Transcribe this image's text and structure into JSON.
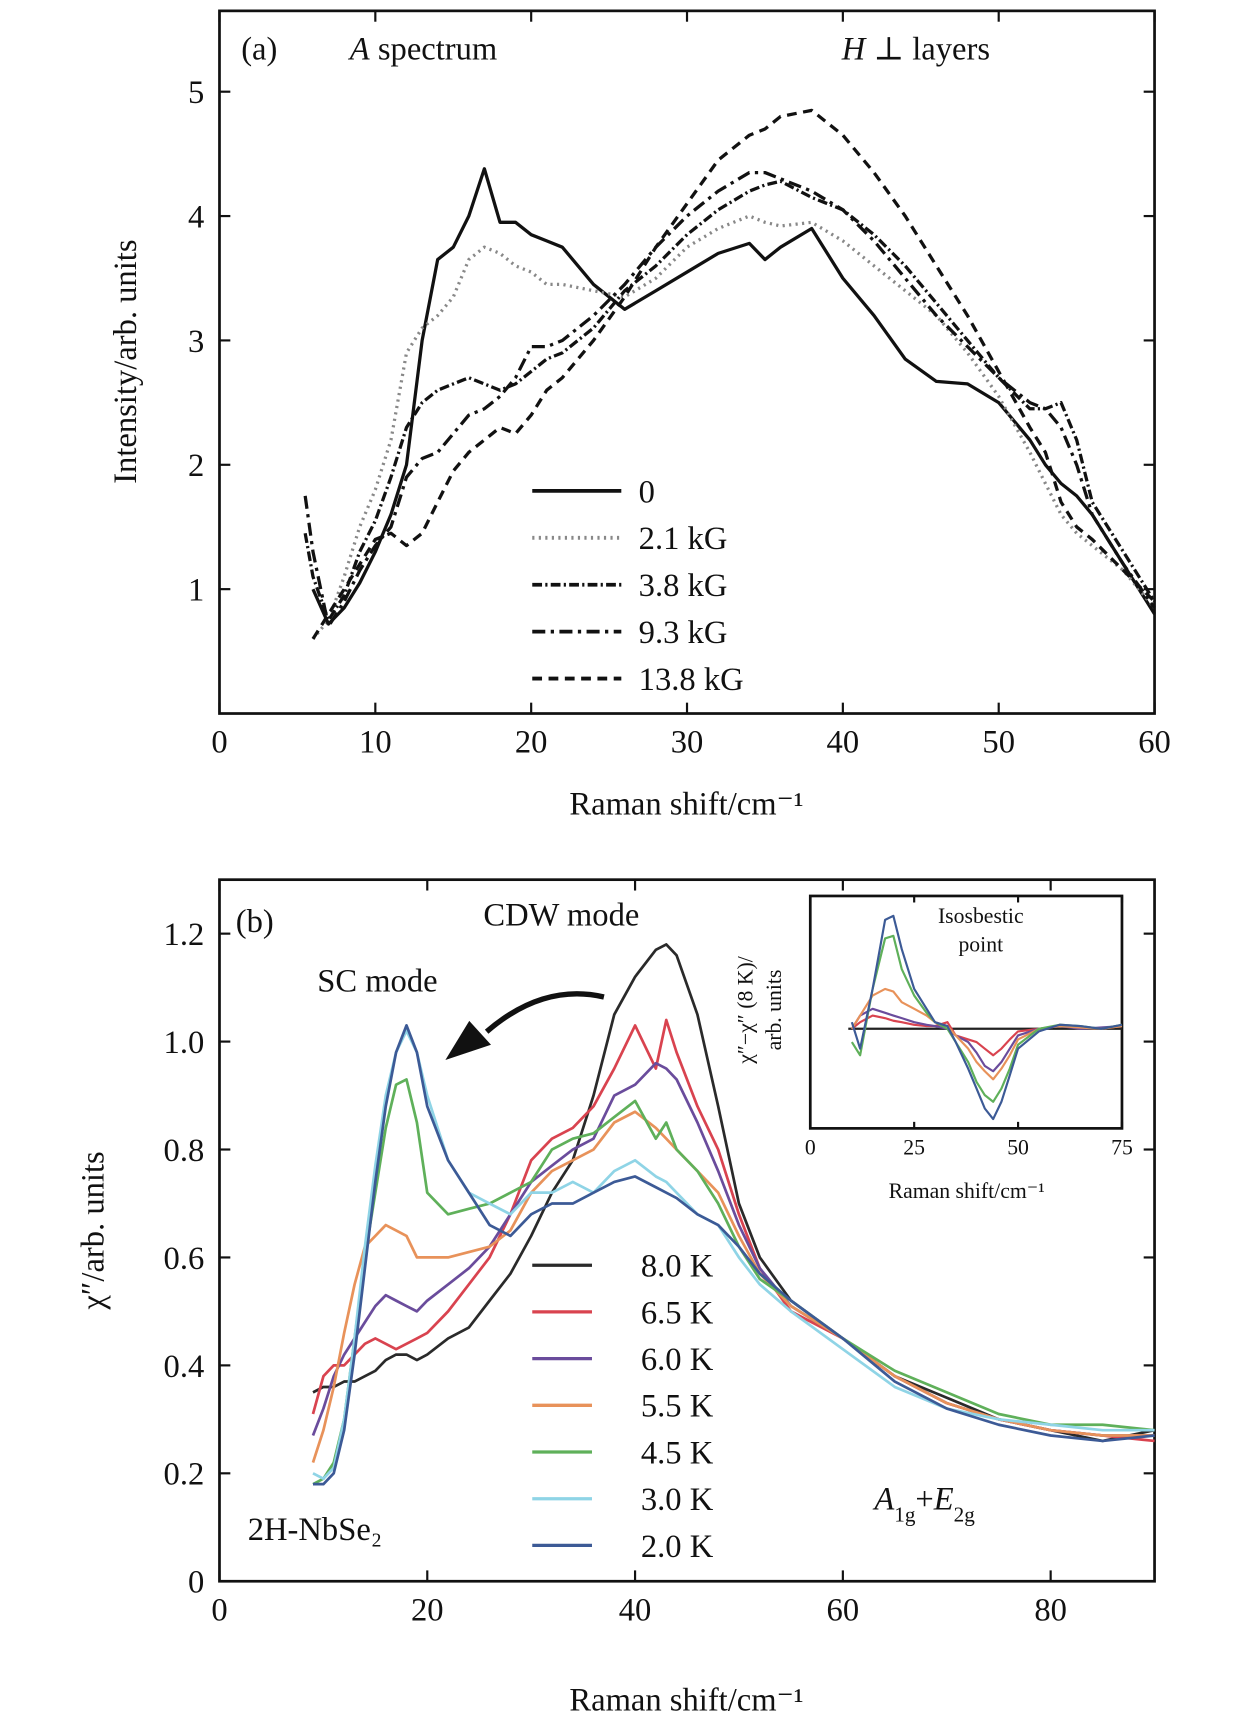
{
  "chart_data": [
    {
      "type": "line",
      "annotations": [
        "(a)",
        [
          "A",
          " spectrum"
        ],
        [
          "H",
          " ⊥ layers"
        ]
      ],
      "xlabel": "Raman shift/cm⁻¹",
      "ylabel": "Intensity/arb. units",
      "xlim": [
        0,
        60
      ],
      "ylim": [
        0,
        5.65
      ],
      "xticks": [
        0,
        10,
        20,
        30,
        40,
        50,
        60
      ],
      "yticks": [
        1,
        2,
        3,
        4,
        5
      ],
      "legend": "lower center",
      "x": [
        5.5,
        6,
        7,
        8,
        9,
        10,
        11,
        12,
        13,
        14,
        15,
        16,
        17,
        18,
        19,
        20,
        21,
        22,
        24,
        26,
        28,
        30,
        32,
        34,
        35,
        36,
        38,
        40,
        42,
        44,
        46,
        48,
        50,
        52,
        53,
        54,
        55,
        56,
        58,
        60
      ],
      "series": [
        {
          "name": "0",
          "color": "#111111",
          "dash": "solid",
          "values": [
            null,
            1.0,
            0.72,
            0.85,
            1.05,
            1.3,
            1.6,
            2.0,
            3.0,
            3.65,
            3.75,
            4.0,
            4.38,
            3.95,
            3.95,
            3.85,
            3.8,
            3.75,
            3.45,
            3.25,
            3.4,
            3.55,
            3.7,
            3.78,
            3.65,
            3.75,
            3.9,
            3.5,
            3.2,
            2.85,
            2.67,
            2.65,
            2.5,
            2.2,
            2.0,
            1.85,
            1.75,
            1.6,
            1.2,
            0.8
          ]
        },
        {
          "name": "2.1 kG",
          "color": "#888888",
          "dash": "dotted",
          "values": [
            null,
            0.6,
            0.75,
            1.1,
            1.5,
            1.8,
            2.2,
            2.9,
            3.1,
            3.2,
            3.35,
            3.65,
            3.75,
            3.7,
            3.6,
            3.55,
            3.45,
            3.45,
            3.4,
            3.35,
            3.5,
            3.75,
            3.9,
            4.0,
            3.95,
            3.92,
            3.95,
            3.8,
            3.6,
            3.4,
            3.2,
            2.9,
            2.55,
            2.1,
            1.85,
            1.6,
            1.45,
            1.35,
            1.15,
            0.85
          ]
        },
        {
          "name": "3.8 kG",
          "color": "#111111",
          "dash": "dash-dot-dense",
          "values": [
            1.45,
            1.1,
            0.75,
            0.95,
            1.3,
            1.55,
            1.9,
            2.3,
            2.5,
            2.6,
            2.65,
            2.7,
            2.65,
            2.6,
            2.65,
            2.75,
            2.85,
            2.9,
            3.1,
            3.4,
            3.6,
            3.85,
            4.05,
            4.2,
            4.25,
            4.28,
            4.15,
            4.05,
            3.85,
            3.6,
            3.3,
            3.0,
            2.7,
            2.45,
            2.45,
            2.5,
            2.2,
            1.7,
            1.3,
            0.9
          ]
        },
        {
          "name": "9.3 kG",
          "color": "#111111",
          "dash": "dash-dot",
          "values": [
            1.75,
            1.3,
            0.7,
            0.9,
            1.15,
            1.35,
            1.5,
            1.9,
            2.05,
            2.1,
            2.25,
            2.4,
            2.45,
            2.55,
            2.7,
            2.95,
            2.95,
            3.0,
            3.2,
            3.45,
            3.75,
            4.0,
            4.2,
            4.35,
            4.35,
            4.3,
            4.2,
            4.05,
            3.8,
            3.5,
            3.2,
            2.95,
            2.7,
            2.5,
            2.45,
            2.3,
            2.0,
            1.6,
            1.2,
            0.85
          ]
        },
        {
          "name": "13.8 kG",
          "color": "#111111",
          "dash": "dashed",
          "values": [
            null,
            0.6,
            0.8,
            1.0,
            1.2,
            1.4,
            1.45,
            1.35,
            1.45,
            1.7,
            1.95,
            2.1,
            2.2,
            2.3,
            2.25,
            2.4,
            2.6,
            2.7,
            3.0,
            3.35,
            3.75,
            4.1,
            4.45,
            4.65,
            4.7,
            4.8,
            4.85,
            4.65,
            4.35,
            4.0,
            3.6,
            3.2,
            2.75,
            2.3,
            2.1,
            1.7,
            1.5,
            1.4,
            1.15,
            0.9
          ]
        }
      ]
    },
    {
      "type": "line",
      "annotations": [
        "(b)",
        "CDW mode",
        "SC mode",
        "2H-NbSe₂",
        [
          "A",
          "1g",
          "+",
          "E",
          "2g"
        ]
      ],
      "xlabel": "Raman shift/cm⁻¹",
      "ylabel": "χ″/arb. units",
      "xlim": [
        0,
        90
      ],
      "ylim": [
        0,
        1.3
      ],
      "xticks": [
        0,
        20,
        40,
        60,
        80
      ],
      "yticks": [
        0,
        0.2,
        0.4,
        0.6,
        0.8,
        {
          "value": 1,
          "label": "1.0"
        },
        1.2
      ],
      "legend": "lower center",
      "x": [
        9,
        10,
        11,
        12,
        13,
        14,
        15,
        16,
        17,
        18,
        19,
        20,
        22,
        24,
        26,
        28,
        30,
        32,
        34,
        36,
        38,
        40,
        42,
        43,
        44,
        46,
        48,
        50,
        52,
        55,
        60,
        65,
        70,
        75,
        80,
        85,
        90
      ],
      "series": [
        {
          "name": "8.0 K",
          "color": "#2a2a2a",
          "dash": "solid",
          "values": [
            0.35,
            0.36,
            0.36,
            0.37,
            0.37,
            0.38,
            0.39,
            0.41,
            0.42,
            0.42,
            0.41,
            0.42,
            0.45,
            0.47,
            0.52,
            0.57,
            0.64,
            0.72,
            0.78,
            0.9,
            1.05,
            1.12,
            1.17,
            1.18,
            1.16,
            1.05,
            0.88,
            0.7,
            0.6,
            0.52,
            0.45,
            0.38,
            0.34,
            0.3,
            0.28,
            0.26,
            0.28
          ]
        },
        {
          "name": "6.5 K",
          "color": "#d9434f",
          "dash": "solid",
          "values": [
            0.31,
            0.38,
            0.4,
            0.4,
            0.42,
            0.44,
            0.45,
            0.44,
            0.43,
            0.44,
            0.45,
            0.46,
            0.5,
            0.55,
            0.6,
            0.68,
            0.78,
            0.82,
            0.84,
            0.88,
            0.95,
            1.03,
            0.95,
            1.04,
            0.98,
            0.88,
            0.8,
            0.68,
            0.58,
            0.5,
            0.45,
            0.38,
            0.33,
            0.3,
            0.28,
            0.27,
            0.26
          ]
        },
        {
          "name": "6.0 K",
          "color": "#6a4c9c",
          "dash": "solid",
          "values": [
            0.27,
            0.32,
            0.38,
            0.42,
            0.45,
            0.48,
            0.51,
            0.53,
            0.52,
            0.51,
            0.5,
            0.52,
            0.55,
            0.58,
            0.62,
            0.68,
            0.74,
            0.77,
            0.8,
            0.82,
            0.9,
            0.92,
            0.96,
            0.95,
            0.93,
            0.85,
            0.76,
            0.66,
            0.58,
            0.51,
            0.45,
            0.38,
            0.33,
            0.3,
            0.28,
            0.27,
            0.27
          ]
        },
        {
          "name": "5.5 K",
          "color": "#e8925a",
          "dash": "solid",
          "values": [
            0.22,
            0.28,
            0.36,
            0.46,
            0.55,
            0.62,
            0.64,
            0.66,
            0.65,
            0.64,
            0.6,
            0.6,
            0.6,
            0.61,
            0.62,
            0.65,
            0.72,
            0.76,
            0.78,
            0.8,
            0.85,
            0.87,
            0.84,
            0.82,
            0.8,
            0.76,
            0.72,
            0.64,
            0.57,
            0.51,
            0.45,
            0.38,
            0.33,
            0.3,
            0.28,
            0.27,
            0.27
          ]
        },
        {
          "name": "4.5 K",
          "color": "#5fb05a",
          "dash": "solid",
          "values": [
            0.18,
            0.19,
            0.22,
            0.3,
            0.45,
            0.6,
            0.72,
            0.84,
            0.92,
            0.93,
            0.85,
            0.72,
            0.68,
            0.69,
            0.7,
            0.72,
            0.74,
            0.8,
            0.82,
            0.83,
            0.86,
            0.89,
            0.82,
            0.85,
            0.8,
            0.76,
            0.7,
            0.62,
            0.56,
            0.52,
            0.45,
            0.39,
            0.35,
            0.31,
            0.29,
            0.29,
            0.28
          ]
        },
        {
          "name": "3.0 K",
          "color": "#8fd4e6",
          "dash": "solid",
          "values": [
            0.2,
            0.19,
            0.21,
            0.3,
            0.45,
            0.62,
            0.77,
            0.9,
            0.98,
            1.02,
            0.98,
            0.9,
            0.78,
            0.72,
            0.7,
            0.68,
            0.72,
            0.72,
            0.74,
            0.72,
            0.76,
            0.78,
            0.75,
            0.74,
            0.72,
            0.68,
            0.66,
            0.6,
            0.55,
            0.5,
            0.43,
            0.36,
            0.32,
            0.3,
            0.29,
            0.28,
            0.28
          ]
        },
        {
          "name": "2.0 K",
          "color": "#3c5a96",
          "dash": "solid",
          "values": [
            0.18,
            0.18,
            0.2,
            0.28,
            0.42,
            0.58,
            0.74,
            0.88,
            0.98,
            1.03,
            0.98,
            0.88,
            0.78,
            0.72,
            0.66,
            0.64,
            0.68,
            0.7,
            0.7,
            0.72,
            0.74,
            0.75,
            0.73,
            0.72,
            0.71,
            0.68,
            0.66,
            0.62,
            0.57,
            0.52,
            0.45,
            0.37,
            0.32,
            0.29,
            0.27,
            0.26,
            0.27
          ]
        }
      ]
    },
    {
      "type": "line",
      "annotations": [
        "Isosbestic",
        "point"
      ],
      "xlabel": "Raman shift/cm⁻¹",
      "ylabel": [
        "χ″−χ″ (8 K)/",
        "arb. units"
      ],
      "xlim": [
        0,
        75
      ],
      "ylim": [
        -0.75,
        1
      ],
      "xticks": [
        0,
        25,
        50,
        75
      ],
      "x": [
        10,
        12,
        15,
        18,
        20,
        22,
        25,
        28,
        30,
        33,
        35,
        38,
        40,
        42,
        44,
        46,
        48,
        50,
        55,
        60,
        65,
        70,
        75
      ],
      "series": [
        {
          "color": "#d9434f",
          "dash": "solid",
          "values": [
            0.0,
            0.05,
            0.1,
            0.08,
            0.06,
            0.05,
            0.03,
            0.02,
            0.02,
            0.05,
            -0.05,
            -0.08,
            -0.1,
            -0.15,
            -0.2,
            -0.15,
            -0.08,
            -0.02,
            0.0,
            0.02,
            0.01,
            0.0,
            0.02
          ]
        },
        {
          "color": "#6a4c9c",
          "dash": "solid",
          "values": [
            0.0,
            0.1,
            0.15,
            0.12,
            0.1,
            0.08,
            0.05,
            0.03,
            0.02,
            0.0,
            -0.05,
            -0.1,
            -0.18,
            -0.28,
            -0.32,
            -0.25,
            -0.15,
            -0.05,
            0.0,
            0.02,
            0.0,
            0.01,
            0.02
          ]
        },
        {
          "color": "#e8925a",
          "dash": "solid",
          "values": [
            0.0,
            0.1,
            0.25,
            0.3,
            0.28,
            0.2,
            0.15,
            0.1,
            0.05,
            0.02,
            -0.05,
            -0.15,
            -0.25,
            -0.32,
            -0.38,
            -0.3,
            -0.2,
            -0.08,
            0.0,
            0.02,
            0.01,
            0.0,
            0.02
          ]
        },
        {
          "color": "#5fb05a",
          "dash": "solid",
          "values": [
            -0.1,
            -0.2,
            0.3,
            0.68,
            0.7,
            0.45,
            0.25,
            0.12,
            0.05,
            0.0,
            -0.1,
            -0.25,
            -0.4,
            -0.5,
            -0.55,
            -0.45,
            -0.3,
            -0.12,
            0.0,
            0.03,
            0.02,
            0.0,
            0.03
          ]
        },
        {
          "color": "#3c5a96",
          "dash": "solid",
          "values": [
            0.05,
            -0.15,
            0.3,
            0.82,
            0.85,
            0.6,
            0.3,
            0.15,
            0.05,
            0.02,
            -0.1,
            -0.3,
            -0.45,
            -0.6,
            -0.68,
            -0.55,
            -0.35,
            -0.15,
            -0.02,
            0.03,
            0.02,
            0.0,
            0.03
          ]
        }
      ]
    }
  ]
}
